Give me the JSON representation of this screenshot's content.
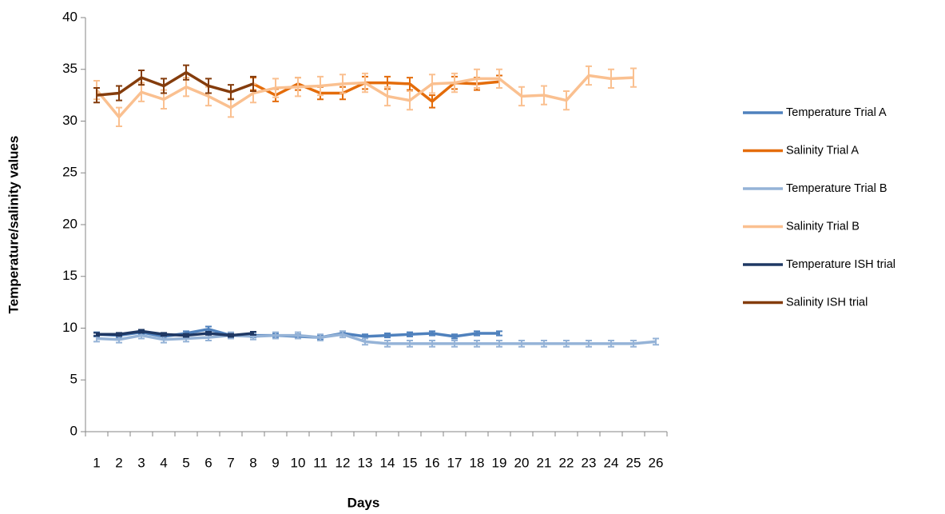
{
  "chart_data": {
    "type": "line",
    "x_label": "Days",
    "y_label": "Temperature/salinity values",
    "x": [
      1,
      2,
      3,
      4,
      5,
      6,
      7,
      8,
      9,
      10,
      11,
      12,
      13,
      14,
      15,
      16,
      17,
      18,
      19,
      20,
      21,
      22,
      23,
      24,
      25,
      26
    ],
    "ylim": [
      0,
      40
    ],
    "yticks": [
      0,
      5,
      10,
      15,
      20,
      25,
      30,
      35,
      40
    ],
    "grid": false,
    "legend": "right",
    "series": [
      {
        "name": "Temperature Trial A",
        "color": "#4f81bd",
        "values": [
          9.4,
          9.3,
          9.6,
          9.2,
          9.5,
          9.9,
          9.3,
          9.3,
          9.3,
          9.2,
          9.1,
          9.5,
          9.2,
          9.3,
          9.4,
          9.5,
          9.2,
          9.5,
          9.5,
          null,
          null,
          null,
          null,
          null,
          null,
          null
        ],
        "errors": [
          0.2,
          0.2,
          0.2,
          0.2,
          0.2,
          0.25,
          0.2,
          0.2,
          0.2,
          0.2,
          0.2,
          0.2,
          0.2,
          0.2,
          0.2,
          0.2,
          0.2,
          0.2,
          0.2,
          null,
          null,
          null,
          null,
          null,
          null,
          null
        ]
      },
      {
        "name": "Salinity Trial A",
        "color": "#e46c0a",
        "values": [
          null,
          null,
          null,
          null,
          null,
          null,
          null,
          33.6,
          32.5,
          33.6,
          32.7,
          32.7,
          33.7,
          33.7,
          33.6,
          31.9,
          33.7,
          33.6,
          33.8,
          null,
          null,
          null,
          null,
          null,
          null,
          null
        ],
        "errors": [
          null,
          null,
          null,
          null,
          null,
          null,
          null,
          0.6,
          0.6,
          0.6,
          0.6,
          0.6,
          0.6,
          0.6,
          0.6,
          0.6,
          0.6,
          0.6,
          0.6,
          null,
          null,
          null,
          null,
          null,
          null,
          null
        ]
      },
      {
        "name": "Temperature Trial B",
        "color": "#95b3d7",
        "values": [
          9.0,
          8.9,
          9.3,
          8.9,
          9.0,
          9.1,
          9.3,
          9.2,
          9.3,
          9.3,
          9.1,
          9.4,
          8.7,
          8.5,
          8.5,
          8.5,
          8.5,
          8.5,
          8.5,
          8.5,
          8.5,
          8.5,
          8.5,
          8.5,
          8.5,
          8.7
        ],
        "errors": [
          0.3,
          0.3,
          0.3,
          0.3,
          0.3,
          0.3,
          0.3,
          0.3,
          0.3,
          0.3,
          0.3,
          0.3,
          0.3,
          0.3,
          0.3,
          0.3,
          0.3,
          0.3,
          0.3,
          0.3,
          0.3,
          0.3,
          0.3,
          0.3,
          0.3,
          0.3
        ]
      },
      {
        "name": "Salinity Trial B",
        "color": "#fac090",
        "values": [
          33.0,
          30.4,
          32.8,
          32.1,
          33.3,
          32.4,
          31.3,
          32.7,
          33.2,
          33.3,
          33.4,
          33.6,
          33.7,
          32.4,
          32.0,
          33.6,
          33.7,
          34.1,
          34.1,
          32.4,
          32.5,
          32.0,
          34.4,
          34.1,
          34.2,
          null
        ],
        "errors": [
          0.9,
          0.9,
          0.9,
          0.9,
          0.9,
          0.9,
          0.9,
          0.9,
          0.9,
          0.9,
          0.9,
          0.9,
          0.9,
          0.9,
          0.9,
          0.9,
          0.9,
          0.9,
          0.9,
          0.9,
          0.9,
          0.9,
          0.9,
          0.9,
          0.9,
          null
        ]
      },
      {
        "name": "Temperature ISH trial",
        "color": "#1f3864",
        "values": [
          9.4,
          9.4,
          9.7,
          9.4,
          9.3,
          9.5,
          9.3,
          9.5,
          null,
          null,
          null,
          null,
          null,
          null,
          null,
          null,
          null,
          null,
          null,
          null,
          null,
          null,
          null,
          null,
          null,
          null
        ],
        "errors": [
          0.15,
          0.15,
          0.15,
          0.15,
          0.15,
          0.15,
          0.15,
          0.15,
          null,
          null,
          null,
          null,
          null,
          null,
          null,
          null,
          null,
          null,
          null,
          null,
          null,
          null,
          null,
          null,
          null,
          null
        ]
      },
      {
        "name": "Salinity ISH trial",
        "color": "#843c0c",
        "values": [
          32.5,
          32.7,
          34.2,
          33.4,
          34.7,
          33.4,
          32.8,
          33.6,
          null,
          null,
          null,
          null,
          null,
          null,
          null,
          null,
          null,
          null,
          null,
          null,
          null,
          null,
          null,
          null,
          null,
          null
        ],
        "errors": [
          0.7,
          0.7,
          0.7,
          0.7,
          0.7,
          0.7,
          0.7,
          0.7,
          null,
          null,
          null,
          null,
          null,
          null,
          null,
          null,
          null,
          null,
          null,
          null,
          null,
          null,
          null,
          null,
          null,
          null
        ]
      }
    ]
  }
}
